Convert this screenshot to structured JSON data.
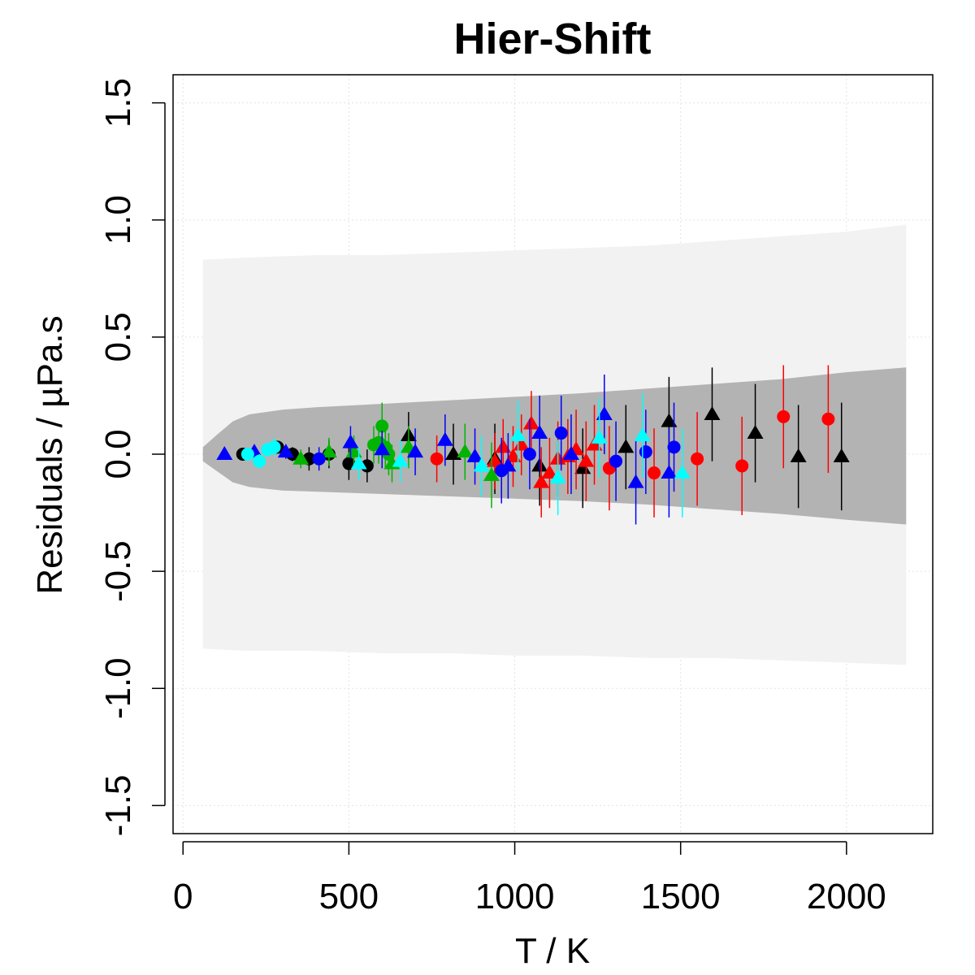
{
  "chart_data": {
    "type": "scatter",
    "title": "Hier-Shift",
    "xlabel": "T / K",
    "ylabel": "Residuals / µPa.s",
    "xlim": [
      -30,
      2260
    ],
    "ylim": [
      -1.62,
      1.62
    ],
    "xticks": [
      0,
      500,
      1000,
      1500,
      2000
    ],
    "yticks": [
      -1.5,
      -1.0,
      -0.5,
      0.0,
      0.5,
      1.0,
      1.5
    ],
    "grid": true,
    "colors": {
      "outer_band": "#f2f2f2",
      "inner_band": "#b3b3b3",
      "grid": "#e3e3e3",
      "series": [
        "#000000",
        "#ff0000",
        "#00b400",
        "#0000ff",
        "#00ffff"
      ]
    },
    "bands": {
      "outer": {
        "x": [
          60,
          200,
          400,
          600,
          800,
          1000,
          1200,
          1400,
          1600,
          1800,
          2000,
          2180
        ],
        "upper": [
          0.83,
          0.84,
          0.85,
          0.85,
          0.86,
          0.87,
          0.88,
          0.89,
          0.91,
          0.93,
          0.95,
          0.98
        ],
        "lower": [
          -0.83,
          -0.84,
          -0.84,
          -0.85,
          -0.85,
          -0.86,
          -0.86,
          -0.87,
          -0.87,
          -0.88,
          -0.89,
          -0.9
        ]
      },
      "inner": {
        "x": [
          60,
          100,
          150,
          200,
          300,
          400,
          600,
          800,
          1000,
          1200,
          1400,
          1600,
          1800,
          2000,
          2180
        ],
        "upper": [
          0.03,
          0.08,
          0.14,
          0.17,
          0.19,
          0.2,
          0.215,
          0.23,
          0.245,
          0.26,
          0.28,
          0.3,
          0.32,
          0.35,
          0.37
        ],
        "lower": [
          -0.03,
          -0.07,
          -0.12,
          -0.14,
          -0.155,
          -0.16,
          -0.17,
          -0.18,
          -0.19,
          -0.2,
          -0.215,
          -0.235,
          -0.255,
          -0.28,
          -0.3
        ]
      }
    },
    "series": [
      {
        "color": "#000000",
        "points": [
          {
            "x": 180,
            "y": 0.0,
            "err": 0.01,
            "shape": "circle"
          },
          {
            "x": 285,
            "y": 0.03,
            "err": 0.02,
            "shape": "circle"
          },
          {
            "x": 330,
            "y": 0.0,
            "err": 0.03,
            "shape": "circle"
          },
          {
            "x": 380,
            "y": -0.02,
            "err": 0.05,
            "shape": "circle"
          },
          {
            "x": 440,
            "y": 0.0,
            "err": 0.06,
            "shape": "circle"
          },
          {
            "x": 500,
            "y": -0.04,
            "err": 0.07,
            "shape": "circle"
          },
          {
            "x": 555,
            "y": -0.05,
            "err": 0.07,
            "shape": "circle"
          },
          {
            "x": 680,
            "y": 0.08,
            "err": 0.1,
            "shape": "triangle"
          },
          {
            "x": 815,
            "y": 0.0,
            "err": 0.13,
            "shape": "triangle"
          },
          {
            "x": 940,
            "y": -0.02,
            "err": 0.15,
            "shape": "triangle"
          },
          {
            "x": 1075,
            "y": -0.05,
            "err": 0.17,
            "shape": "triangle"
          },
          {
            "x": 1205,
            "y": -0.06,
            "err": 0.17,
            "shape": "triangle"
          },
          {
            "x": 1335,
            "y": 0.03,
            "err": 0.18,
            "shape": "triangle"
          },
          {
            "x": 1465,
            "y": 0.14,
            "err": 0.19,
            "shape": "triangle"
          },
          {
            "x": 1595,
            "y": 0.17,
            "err": 0.2,
            "shape": "triangle"
          },
          {
            "x": 1725,
            "y": 0.09,
            "err": 0.21,
            "shape": "triangle"
          },
          {
            "x": 1855,
            "y": -0.01,
            "err": 0.22,
            "shape": "triangle"
          },
          {
            "x": 1985,
            "y": -0.01,
            "err": 0.23,
            "shape": "triangle"
          }
        ]
      },
      {
        "color": "#ff0000",
        "points": [
          {
            "x": 765,
            "y": -0.02,
            "err": 0.1,
            "shape": "circle"
          },
          {
            "x": 940,
            "y": -0.03,
            "err": 0.12,
            "shape": "triangle"
          },
          {
            "x": 965,
            "y": 0.03,
            "err": 0.12,
            "shape": "triangle"
          },
          {
            "x": 995,
            "y": -0.01,
            "err": 0.13,
            "shape": "triangle"
          },
          {
            "x": 1020,
            "y": 0.04,
            "err": 0.13,
            "shape": "triangle"
          },
          {
            "x": 1050,
            "y": 0.13,
            "err": 0.14,
            "shape": "triangle"
          },
          {
            "x": 1080,
            "y": -0.12,
            "err": 0.15,
            "shape": "triangle"
          },
          {
            "x": 1105,
            "y": -0.08,
            "err": 0.15,
            "shape": "triangle"
          },
          {
            "x": 1130,
            "y": -0.02,
            "err": 0.16,
            "shape": "triangle"
          },
          {
            "x": 1160,
            "y": -0.01,
            "err": 0.16,
            "shape": "triangle"
          },
          {
            "x": 1185,
            "y": 0.02,
            "err": 0.17,
            "shape": "triangle"
          },
          {
            "x": 1215,
            "y": -0.03,
            "err": 0.17,
            "shape": "triangle"
          },
          {
            "x": 1240,
            "y": 0.04,
            "err": 0.17,
            "shape": "triangle"
          },
          {
            "x": 1285,
            "y": -0.06,
            "err": 0.18,
            "shape": "circle"
          },
          {
            "x": 1420,
            "y": -0.08,
            "err": 0.19,
            "shape": "circle"
          },
          {
            "x": 1550,
            "y": -0.02,
            "err": 0.2,
            "shape": "circle"
          },
          {
            "x": 1685,
            "y": -0.05,
            "err": 0.21,
            "shape": "circle"
          },
          {
            "x": 1810,
            "y": 0.16,
            "err": 0.22,
            "shape": "circle"
          },
          {
            "x": 1945,
            "y": 0.15,
            "err": 0.23,
            "shape": "circle"
          }
        ]
      },
      {
        "color": "#00b400",
        "points": [
          {
            "x": 355,
            "y": -0.02,
            "err": 0.04,
            "shape": "triangle"
          },
          {
            "x": 440,
            "y": 0.01,
            "err": 0.06,
            "shape": "triangle"
          },
          {
            "x": 515,
            "y": 0.01,
            "err": 0.07,
            "shape": "triangle"
          },
          {
            "x": 575,
            "y": 0.04,
            "err": 0.08,
            "shape": "circle"
          },
          {
            "x": 590,
            "y": 0.05,
            "err": 0.09,
            "shape": "circle"
          },
          {
            "x": 600,
            "y": 0.12,
            "err": 0.1,
            "shape": "circle"
          },
          {
            "x": 610,
            "y": 0.03,
            "err": 0.09,
            "shape": "circle"
          },
          {
            "x": 620,
            "y": 0.0,
            "err": 0.09,
            "shape": "circle"
          },
          {
            "x": 630,
            "y": -0.04,
            "err": 0.08,
            "shape": "triangle"
          },
          {
            "x": 680,
            "y": 0.03,
            "err": 0.09,
            "shape": "triangle"
          },
          {
            "x": 850,
            "y": 0.01,
            "err": 0.12,
            "shape": "triangle"
          },
          {
            "x": 930,
            "y": -0.09,
            "err": 0.14,
            "shape": "triangle"
          }
        ]
      },
      {
        "color": "#0000ff",
        "points": [
          {
            "x": 125,
            "y": 0.0,
            "err": 0.01,
            "shape": "triangle"
          },
          {
            "x": 215,
            "y": 0.01,
            "err": 0.02,
            "shape": "triangle"
          },
          {
            "x": 310,
            "y": 0.01,
            "err": 0.03,
            "shape": "triangle"
          },
          {
            "x": 410,
            "y": -0.02,
            "err": 0.05,
            "shape": "circle"
          },
          {
            "x": 505,
            "y": 0.05,
            "err": 0.07,
            "shape": "triangle"
          },
          {
            "x": 600,
            "y": 0.02,
            "err": 0.08,
            "shape": "triangle"
          },
          {
            "x": 700,
            "y": 0.01,
            "err": 0.1,
            "shape": "triangle"
          },
          {
            "x": 790,
            "y": 0.06,
            "err": 0.11,
            "shape": "triangle"
          },
          {
            "x": 880,
            "y": -0.01,
            "err": 0.12,
            "shape": "triangle"
          },
          {
            "x": 960,
            "y": -0.07,
            "err": 0.14,
            "shape": "circle"
          },
          {
            "x": 980,
            "y": -0.05,
            "err": 0.14,
            "shape": "triangle"
          },
          {
            "x": 1045,
            "y": 0.0,
            "err": 0.15,
            "shape": "circle"
          },
          {
            "x": 1075,
            "y": 0.09,
            "err": 0.16,
            "shape": "triangle"
          },
          {
            "x": 1140,
            "y": 0.09,
            "err": 0.16,
            "shape": "circle"
          },
          {
            "x": 1170,
            "y": 0.0,
            "err": 0.17,
            "shape": "triangle"
          },
          {
            "x": 1270,
            "y": 0.17,
            "err": 0.17,
            "shape": "triangle"
          },
          {
            "x": 1305,
            "y": -0.03,
            "err": 0.17,
            "shape": "circle"
          },
          {
            "x": 1365,
            "y": -0.12,
            "err": 0.18,
            "shape": "triangle"
          },
          {
            "x": 1395,
            "y": 0.01,
            "err": 0.18,
            "shape": "circle"
          },
          {
            "x": 1465,
            "y": -0.08,
            "err": 0.19,
            "shape": "triangle"
          },
          {
            "x": 1480,
            "y": 0.03,
            "err": 0.19,
            "shape": "circle"
          }
        ]
      },
      {
        "color": "#00ffff",
        "points": [
          {
            "x": 195,
            "y": 0.0,
            "err": 0.01,
            "shape": "circle"
          },
          {
            "x": 230,
            "y": -0.03,
            "err": 0.03,
            "shape": "circle"
          },
          {
            "x": 255,
            "y": 0.02,
            "err": 0.03,
            "shape": "circle"
          },
          {
            "x": 275,
            "y": 0.03,
            "err": 0.04,
            "shape": "circle"
          },
          {
            "x": 530,
            "y": -0.04,
            "err": 0.07,
            "shape": "triangle"
          },
          {
            "x": 655,
            "y": -0.03,
            "err": 0.09,
            "shape": "triangle"
          },
          {
            "x": 900,
            "y": -0.05,
            "err": 0.13,
            "shape": "triangle"
          },
          {
            "x": 1010,
            "y": 0.08,
            "err": 0.15,
            "shape": "triangle"
          },
          {
            "x": 1130,
            "y": -0.1,
            "err": 0.16,
            "shape": "triangle"
          },
          {
            "x": 1255,
            "y": 0.07,
            "err": 0.17,
            "shape": "triangle"
          },
          {
            "x": 1385,
            "y": 0.08,
            "err": 0.18,
            "shape": "triangle"
          },
          {
            "x": 1505,
            "y": -0.08,
            "err": 0.19,
            "shape": "triangle"
          }
        ]
      }
    ]
  }
}
